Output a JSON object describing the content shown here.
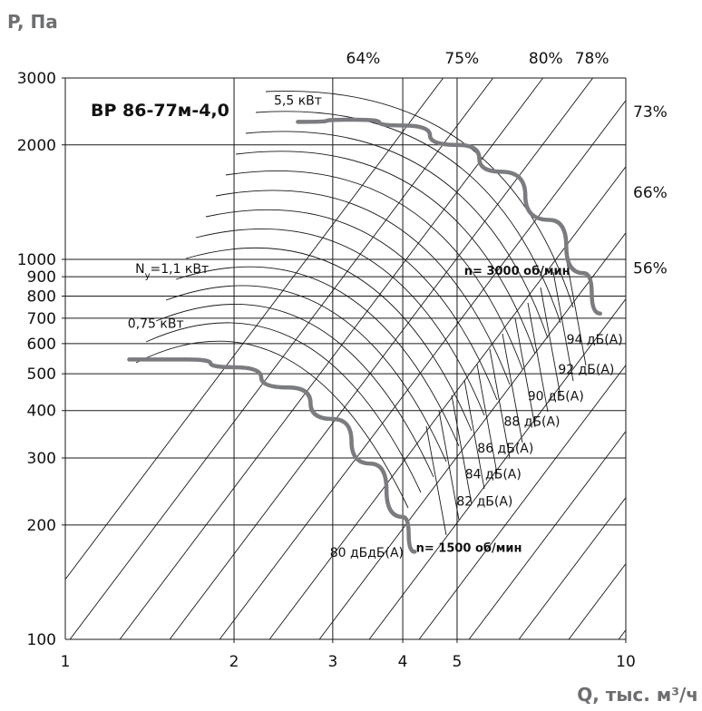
{
  "chart_data": {
    "type": "line",
    "title": "ВР 86-77м-4,0",
    "xlabel": "Q, тыс. м³/ч",
    "ylabel": "P, Па",
    "x_scale": "log",
    "y_scale": "log",
    "xlim": [
      1,
      10
    ],
    "ylim": [
      100,
      3000
    ],
    "x_ticks": [
      {
        "v": 1,
        "label": "1"
      },
      {
        "v": 2,
        "label": "2"
      },
      {
        "v": 3,
        "label": "3"
      },
      {
        "v": 4,
        "label": "4"
      },
      {
        "v": 5,
        "label": "5"
      },
      {
        "v": 10,
        "label": "10"
      }
    ],
    "y_ticks": [
      {
        "v": 100,
        "label": "100"
      },
      {
        "v": 200,
        "label": "200"
      },
      {
        "v": 300,
        "label": "300"
      },
      {
        "v": 400,
        "label": "400"
      },
      {
        "v": 500,
        "label": "500"
      },
      {
        "v": 600,
        "label": "600"
      },
      {
        "v": 700,
        "label": "700"
      },
      {
        "v": 800,
        "label": "800"
      },
      {
        "v": 900,
        "label": "900"
      },
      {
        "v": 1000,
        "label": "1000"
      },
      {
        "v": 2000,
        "label": "2000"
      },
      {
        "v": 3000,
        "label": "3000"
      }
    ],
    "grid": true,
    "series": [
      {
        "name": "n= 3000 об/мин",
        "x": [
          2.6,
          3.3,
          4.0,
          5.0,
          6.0,
          7.3,
          8.4,
          9.0
        ],
        "y": [
          2300,
          2330,
          2250,
          2000,
          1700,
          1270,
          920,
          720
        ]
      },
      {
        "name": "n= 1500 об/мин",
        "x": [
          1.3,
          1.65,
          2.0,
          2.5,
          3.0,
          3.5,
          4.0,
          4.2
        ],
        "y": [
          545,
          545,
          520,
          460,
          380,
          290,
          210,
          170
        ]
      }
    ],
    "efficiency_labels": [
      {
        "text": "64%",
        "x": 3.4,
        "y": 3000
      },
      {
        "text": "75%",
        "x": 5.1,
        "y": 3000
      },
      {
        "text": "80%",
        "x": 7.2,
        "y": 3000
      },
      {
        "text": "78%",
        "x": 8.7,
        "y": 3000
      },
      {
        "text": "73%",
        "x": 10,
        "y": 2450
      },
      {
        "text": "66%",
        "x": 10,
        "y": 1500
      },
      {
        "text": "56%",
        "x": 10,
        "y": 950
      }
    ],
    "power_labels": [
      {
        "text": "5,5 кВт",
        "x": 2.6,
        "y": 2550
      },
      {
        "text": "0,75 кВт",
        "x": 1.45,
        "y": 660
      }
    ],
    "power_label_ny": {
      "prefix": "N",
      "sub": "у",
      "suffix": "=1,1 кВт",
      "x": 1.55,
      "y": 920
    },
    "noise_labels": [
      {
        "text": "94 дБ(А)",
        "x": 8.8,
        "y": 600
      },
      {
        "text": "92 дБ(А)",
        "x": 8.5,
        "y": 500
      },
      {
        "text": "90 дБ(А)",
        "x": 7.5,
        "y": 425
      },
      {
        "text": "88 дБ(А)",
        "x": 6.8,
        "y": 365
      },
      {
        "text": "86 дБ(А)",
        "x": 6.1,
        "y": 310
      },
      {
        "text": "84 дБ(А)",
        "x": 5.8,
        "y": 265
      },
      {
        "text": "82 дБ(А)",
        "x": 5.6,
        "y": 225
      },
      {
        "text": "80 дБдБ(А)",
        "x": 3.45,
        "y": 165
      }
    ],
    "speed_labels": [
      {
        "text": "n= 3000 об/мин",
        "x": 6.4,
        "y": 910
      },
      {
        "text": "n= 1500 об/мин",
        "x": 5.25,
        "y": 170
      }
    ]
  }
}
